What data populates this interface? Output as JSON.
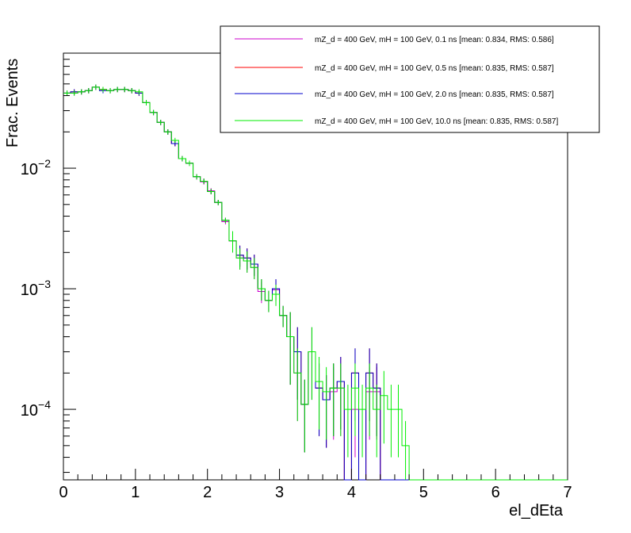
{
  "chart_data": {
    "type": "line",
    "style": "histogram-step",
    "title": "",
    "xlabel": "el_dEta",
    "ylabel": "Frac. Events",
    "xlim": [
      0,
      7
    ],
    "ylim": [
      2.6e-05,
      0.09
    ],
    "yscale": "log",
    "grid": false,
    "legend_position": "top-right",
    "x_ticks": [
      "0",
      "1",
      "2",
      "3",
      "4",
      "5",
      "6",
      "7"
    ],
    "y_ticks": [
      {
        "base": "10",
        "exp": "−4",
        "value": 0.0001
      },
      {
        "base": "10",
        "exp": "−3",
        "value": 0.001
      },
      {
        "base": "10",
        "exp": "−2",
        "value": 0.01
      }
    ],
    "bin_width": 0.1,
    "series": [
      {
        "name": "mZ_d = 400 GeV, mH = 100 GeV, 0.1 ns [mean: 0.834, RMS: 0.586]",
        "color": "#cc00cc",
        "values": [
          0.042,
          0.042,
          0.043,
          0.044,
          0.047,
          0.045,
          0.044,
          0.045,
          0.045,
          0.044,
          0.042,
          0.035,
          0.029,
          0.024,
          0.02,
          0.016,
          0.012,
          0.011,
          0.0085,
          0.0077,
          0.0065,
          0.0052,
          0.0036,
          0.0025,
          0.0018,
          0.0017,
          0.0015,
          0.00095,
          0.0008,
          0.00098,
          0.0006,
          0.0004,
          0.0002,
          0.00011,
          0.0003,
          0.00015,
          0.00012,
          0.00014,
          0.00015,
          0,
          0.0001,
          0,
          0.00014,
          0.00014,
          0,
          0,
          0,
          0,
          0,
          0,
          0,
          0,
          0,
          0,
          0,
          0,
          0,
          0,
          0,
          0,
          0,
          0,
          0,
          0,
          0,
          0,
          0,
          0,
          0,
          0
        ]
      },
      {
        "name": "mZ_d = 400 GeV, mH = 100 GeV, 0.5 ns [mean: 0.835, RMS: 0.587]",
        "color": "#ff0000",
        "values": [
          0.042,
          0.043,
          0.043,
          0.044,
          0.047,
          0.045,
          0.044,
          0.045,
          0.045,
          0.044,
          0.042,
          0.035,
          0.029,
          0.024,
          0.02,
          0.016,
          0.012,
          0.011,
          0.0085,
          0.0078,
          0.0064,
          0.0052,
          0.0037,
          0.0025,
          0.0019,
          0.0018,
          0.0016,
          0.001,
          0.0008,
          0.001,
          0.0006,
          0.0004,
          0.0003,
          0.00011,
          0.0003,
          0.00015,
          0.00012,
          0.00015,
          0.00017,
          0,
          0.0002,
          0,
          0.0002,
          0.00015,
          0,
          0,
          0,
          0,
          0,
          0,
          0,
          0,
          0,
          0,
          0,
          0,
          0,
          0,
          0,
          0,
          0,
          0,
          0,
          0,
          0,
          0,
          0,
          0,
          0,
          0
        ]
      },
      {
        "name": "mZ_d = 400 GeV, mH = 100 GeV, 2.0 ns [mean: 0.835, RMS: 0.587]",
        "color": "#0000cc",
        "values": [
          0.042,
          0.043,
          0.043,
          0.044,
          0.047,
          0.044,
          0.044,
          0.045,
          0.045,
          0.044,
          0.042,
          0.035,
          0.029,
          0.024,
          0.02,
          0.016,
          0.012,
          0.011,
          0.0085,
          0.0078,
          0.0064,
          0.0052,
          0.0037,
          0.0025,
          0.0019,
          0.0018,
          0.0016,
          0.001,
          0.0008,
          0.001,
          0.0006,
          0.0004,
          0.0003,
          0.00011,
          0.0003,
          0.00015,
          0.00012,
          0.00015,
          0.00017,
          0,
          0.0002,
          0,
          0.0002,
          0.00015,
          0,
          0,
          0,
          0,
          0,
          0,
          0,
          0,
          0,
          0,
          0,
          0,
          0,
          0,
          0,
          0,
          0,
          0,
          0,
          0,
          0,
          0,
          0,
          0,
          0,
          0
        ]
      },
      {
        "name": "mZ_d = 400 GeV, mH = 100 GeV, 10.0 ns [mean: 0.835, RMS: 0.587]",
        "color": "#00ee00",
        "values": [
          0.042,
          0.042,
          0.043,
          0.044,
          0.047,
          0.045,
          0.044,
          0.045,
          0.045,
          0.044,
          0.043,
          0.035,
          0.029,
          0.024,
          0.02,
          0.017,
          0.012,
          0.011,
          0.0085,
          0.0078,
          0.0064,
          0.0052,
          0.0037,
          0.0025,
          0.0018,
          0.0017,
          0.0015,
          0.001,
          0.0008,
          0.0009,
          0.0006,
          0.0004,
          0.0002,
          0.00011,
          0.0003,
          0.00017,
          0.00014,
          0.00015,
          0.00015,
          0.0001,
          0.00015,
          0.0001,
          0.00015,
          0.0001,
          0.00013,
          0.0001,
          0.0001,
          5e-05,
          0,
          0,
          0,
          0,
          0,
          0,
          0,
          0,
          0,
          0,
          0,
          0,
          0,
          0,
          0,
          0,
          0,
          0,
          0,
          0,
          0,
          0
        ]
      }
    ]
  }
}
